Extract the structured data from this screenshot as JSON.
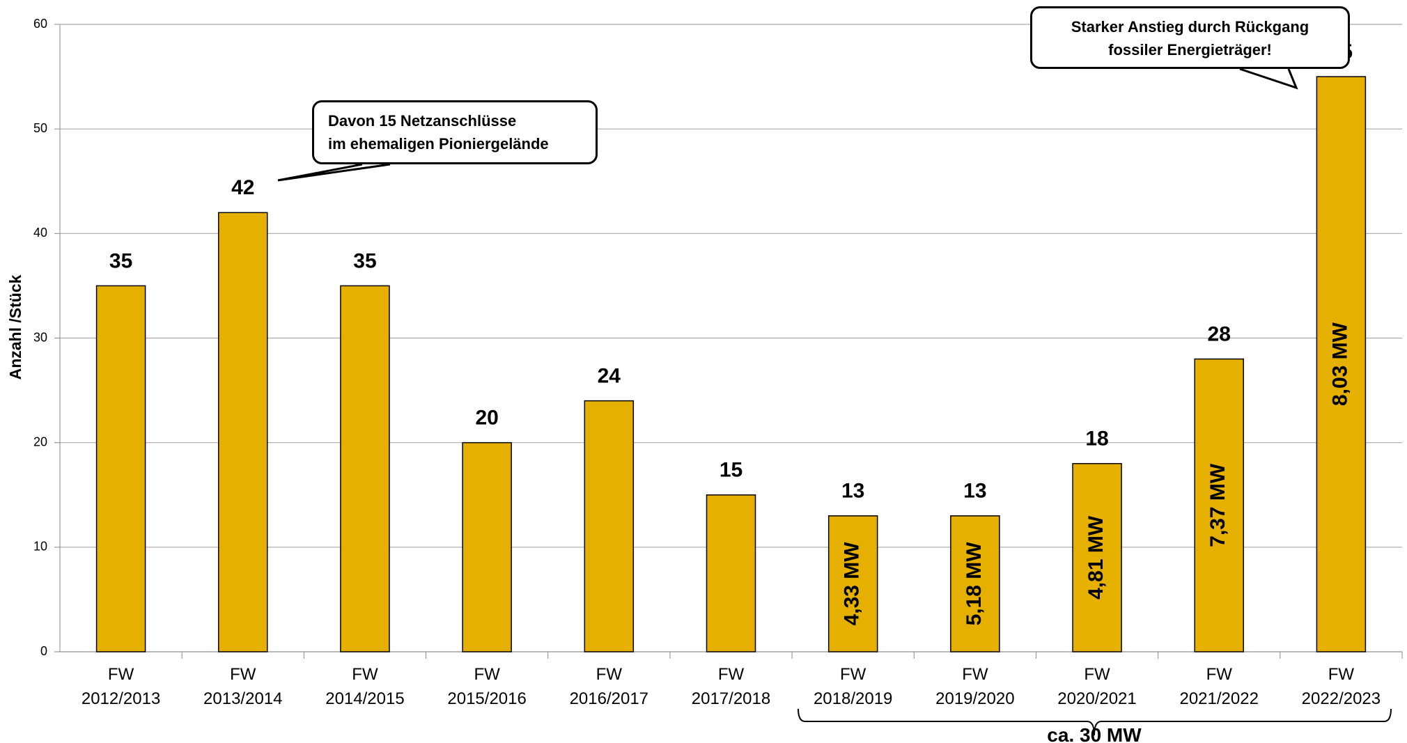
{
  "chart_data": {
    "type": "bar",
    "y_label": "Anzahl /Stück",
    "categories": [
      "FW\n2012/2013",
      "FW\n2013/2014",
      "FW\n2014/2015",
      "FW\n2015/2016",
      "FW\n2016/2017",
      "FW\n2017/2018",
      "FW\n2018/2019",
      "FW\n2019/2020",
      "FW\n2020/2021",
      "FW\n2021/2022",
      "FW\n2022/2023"
    ],
    "values": [
      35,
      42,
      35,
      20,
      24,
      15,
      13,
      13,
      18,
      28,
      55
    ],
    "mw_labels": [
      null,
      null,
      null,
      null,
      null,
      null,
      "4,33 MW",
      "5,18 MW",
      "4,81 MW",
      "7,37 MW",
      "8,03 MW"
    ],
    "color": "#e6b000",
    "ylim": [
      0,
      60
    ],
    "yticks": [
      0,
      10,
      20,
      30,
      40,
      50,
      60
    ],
    "grid": true,
    "callouts": [
      "Davon 15 Netzanschlüsse\nim ehemaligen Pioniergelände",
      "Starker Anstieg durch Rückgang\nfossiler Energieträger!"
    ],
    "bracket_label": "ca. 30 MW"
  }
}
